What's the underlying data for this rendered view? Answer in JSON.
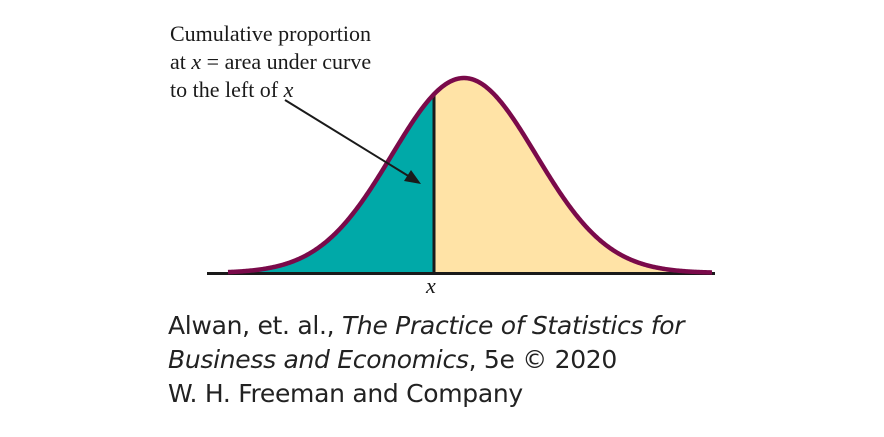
{
  "annotation": {
    "line1": "Cumulative proportion",
    "line2_prefix": "at ",
    "line2_var": "x",
    "line2_suffix": " = area under curve",
    "line3_prefix": "to the left of ",
    "line3_var": "x"
  },
  "axis": {
    "marker_label": "x"
  },
  "credit": {
    "authors": "Alwan, et. al., ",
    "book_title_part1": "The Practice of Statistics for",
    "book_title_part2": "Business and Economics",
    "edition": ", 5e © 2020",
    "publisher": "W. H. Freeman and Company"
  },
  "colors": {
    "curve": "#7a0a4a",
    "left_area": "#00a9a8",
    "right_area": "#ffe3a6",
    "axis": "#1a1a1a"
  }
}
